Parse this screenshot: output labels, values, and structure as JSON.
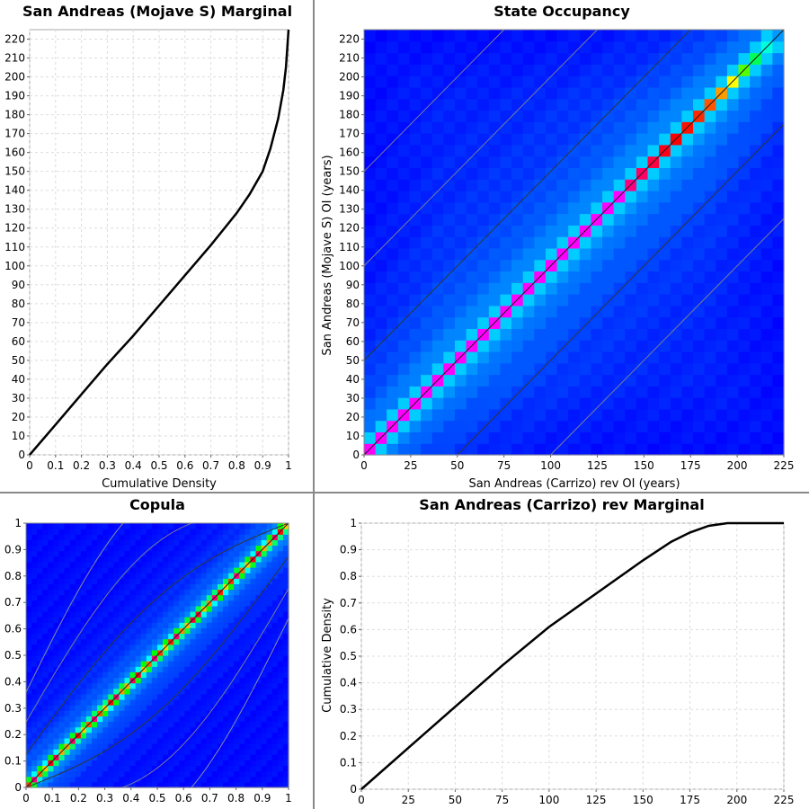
{
  "chart_data": [
    {
      "id": "mojave_marginal",
      "type": "line",
      "title": "San Andreas (Mojave S) Marginal",
      "xlabel": "Cumulative Density",
      "ylabel": "",
      "xlim": [
        0,
        1
      ],
      "ylim": [
        0,
        225
      ],
      "grid": true,
      "x_ticks": [
        "0",
        "0.1",
        "0.2",
        "0.3",
        "0.4",
        "0.5",
        "0.6",
        "0.7",
        "0.8",
        "0.9",
        "1"
      ],
      "y_ticks": [
        "0",
        "10",
        "20",
        "30",
        "40",
        "50",
        "60",
        "70",
        "80",
        "90",
        "100",
        "110",
        "120",
        "130",
        "140",
        "150",
        "160",
        "170",
        "180",
        "190",
        "200",
        "210",
        "220"
      ],
      "series": [
        {
          "color": "#000000",
          "x": [
            0,
            0.1,
            0.2,
            0.3,
            0.4,
            0.5,
            0.6,
            0.7,
            0.8,
            0.85,
            0.9,
            0.93,
            0.96,
            0.98,
            0.99,
            1.0
          ],
          "y": [
            0,
            16,
            32,
            48,
            63,
            79,
            95,
            111,
            128,
            138,
            150,
            162,
            178,
            193,
            205,
            225
          ]
        }
      ]
    },
    {
      "id": "state_occupancy",
      "type": "heatmap",
      "title": "State Occupancy",
      "xlabel": "San Andreas (Carrizo) rev OI (years)",
      "ylabel": "San Andreas (Mojave S) OI (years)",
      "xlim": [
        0,
        225
      ],
      "ylim": [
        0,
        225
      ],
      "x_ticks": [
        "0",
        "25",
        "50",
        "75",
        "100",
        "125",
        "150",
        "175",
        "200",
        "225"
      ],
      "y_ticks": [
        "0",
        "10",
        "20",
        "30",
        "40",
        "50",
        "60",
        "70",
        "80",
        "90",
        "100",
        "110",
        "120",
        "130",
        "140",
        "150",
        "160",
        "170",
        "180",
        "190",
        "200",
        "210",
        "220"
      ],
      "colormap": [
        "#0000ff",
        "#00ffff",
        "#00ff00",
        "#ffff00",
        "#ff8000",
        "#ff0000",
        "#ff00ff"
      ],
      "diagonal_cell_values": [
        1.0,
        1.0,
        1.0,
        1.0,
        1.0,
        1.0,
        1.0,
        1.0,
        1.0,
        1.0,
        1.0,
        1.0,
        1.0,
        1.0,
        1.0,
        1.0,
        1.0,
        1.0,
        1.0,
        1.0,
        1.0,
        1.0,
        1.0,
        0.9,
        0.88,
        0.85,
        0.82,
        0.8,
        0.78,
        0.75,
        0.7,
        0.62,
        0.5,
        0.4,
        0.3,
        0.22,
        0.12
      ],
      "contour_offsets": [
        -100,
        -50,
        0,
        50,
        100,
        150
      ]
    },
    {
      "id": "copula",
      "type": "heatmap",
      "title": "Copula",
      "xlabel": "",
      "ylabel": "",
      "xlim": [
        0,
        1
      ],
      "ylim": [
        0,
        1
      ],
      "x_ticks": [
        "0",
        "0.1",
        "0.2",
        "0.3",
        "0.4",
        "0.5",
        "0.6",
        "0.7",
        "0.8",
        "0.9",
        "1"
      ],
      "y_ticks": [
        "0",
        "0.1",
        "0.2",
        "0.3",
        "0.4",
        "0.5",
        "0.6",
        "0.7",
        "0.8",
        "0.9",
        "1"
      ],
      "colormap": [
        "#0000ff",
        "#00ffff",
        "#00ff00",
        "#ffff00",
        "#ff8000",
        "#ff0000",
        "#ff00ff"
      ]
    },
    {
      "id": "carrizo_marginal",
      "type": "line",
      "title": "San Andreas (Carrizo) rev Marginal",
      "xlabel": "",
      "ylabel": "Cumulative Density",
      "xlim": [
        0,
        225
      ],
      "ylim": [
        0,
        1
      ],
      "grid": true,
      "x_ticks": [
        "0",
        "25",
        "50",
        "75",
        "100",
        "125",
        "150",
        "175",
        "200",
        "225"
      ],
      "y_ticks": [
        "0",
        "0.1",
        "0.2",
        "0.3",
        "0.4",
        "0.5",
        "0.6",
        "0.7",
        "0.8",
        "0.9",
        "1"
      ],
      "series": [
        {
          "color": "#000000",
          "x": [
            0,
            25,
            50,
            75,
            100,
            125,
            150,
            165,
            175,
            185,
            195,
            205,
            225
          ],
          "y": [
            0,
            0.155,
            0.31,
            0.465,
            0.61,
            0.735,
            0.86,
            0.93,
            0.965,
            0.99,
            1.0,
            1.0,
            1.0
          ]
        }
      ]
    }
  ]
}
